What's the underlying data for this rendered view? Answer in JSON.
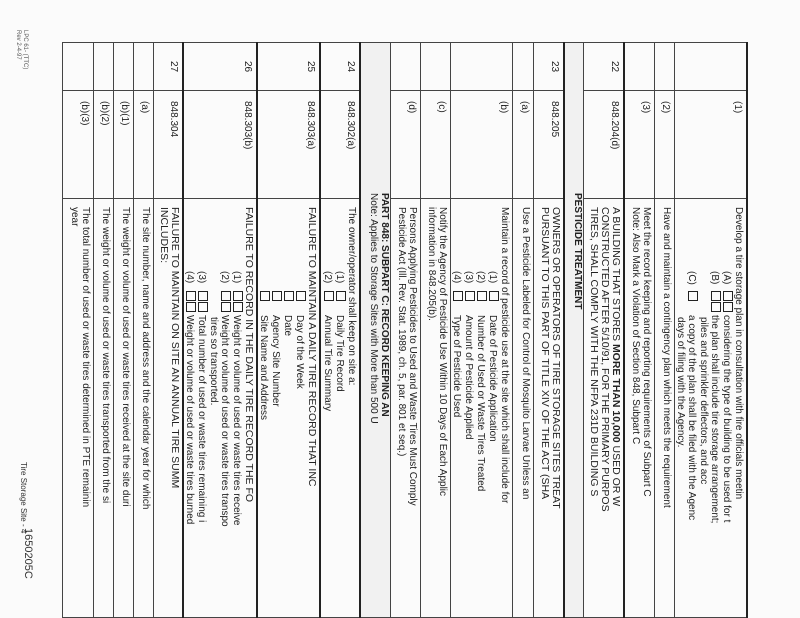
{
  "rows": [
    {
      "type": "main",
      "num": "",
      "sec": "(1)",
      "lines": [
        {
          "k": "caps0",
          "text": "Develop a tire storage plan in consultation with fire officials meetin"
        },
        {
          "k": "item",
          "label": "(A)",
          "boxes": 2,
          "text": "considering the type of building to be used for t"
        },
        {
          "k": "item",
          "label": "(B)",
          "boxes": 2,
          "text": "the plan shall include tire storage arrangement;"
        },
        {
          "k": "cont",
          "text": "piles and sprinkler deflectors, and acc"
        },
        {
          "k": "item",
          "label": "(C)",
          "boxes": 1,
          "text": "a copy of the plan shall be filed with the Agenc"
        },
        {
          "k": "cont",
          "text": "days of filing with the Agency."
        }
      ]
    },
    {
      "type": "sub",
      "num": "",
      "sec": "(2)",
      "lines": [
        {
          "text": "Have and maintain a contingency plan which meets the requirement"
        }
      ]
    },
    {
      "type": "sub",
      "num": "",
      "sec": "(3)",
      "lines": [
        {
          "text": "Meet the record keeping and reporting requirements of Subpart C"
        },
        {
          "text": "Note: Also Mark a Violation of Section 848, Subpart C"
        }
      ]
    },
    {
      "type": "main",
      "num": "22",
      "sec": "848.204(d)",
      "lines": [
        {
          "k": "caps",
          "text": "A BUILDING THAT STORES ",
          "bold": "MORE THAN 10,000",
          "post": " USED OR W"
        },
        {
          "k": "caps",
          "text": "CONSTRUCTED AFTER 5/10/91, FOR THE PRIMARY PURPOS"
        },
        {
          "k": "caps",
          "text": "TIRES, SHALL COMPLY WITH THE NFPA 231D BUILDING S"
        }
      ]
    },
    {
      "type": "hdr",
      "lines": [
        {
          "text": "PESTICIDE TREATMENT"
        }
      ]
    },
    {
      "type": "main",
      "num": "23",
      "sec": "848.205",
      "lines": [
        {
          "k": "caps",
          "text": "OWNERS OR OPERATORS OF TIRE STORAGE SITES TREAT"
        },
        {
          "k": "caps",
          "text": "PURSUANT TO THIS PART OF TITLE XIV OF THE ACT (SHA"
        }
      ]
    },
    {
      "type": "sub",
      "num": "",
      "sec": "(a)",
      "lines": [
        {
          "text": "Use a Pesticide Labeled for Control of Mosquito Larvae Unless an"
        }
      ]
    },
    {
      "type": "sub",
      "num": "",
      "sec": "(b)",
      "lines": [
        {
          "text": "Maintain a record of pesticide use at the site which shall include for"
        },
        {
          "k": "item",
          "label": "(1)",
          "boxes": 1,
          "text": "Date of Pesticide Application"
        },
        {
          "k": "item",
          "label": "(2)",
          "boxes": 1,
          "text": "Number of Used or Waste Tires Treated"
        },
        {
          "k": "item",
          "label": "(3)",
          "boxes": 1,
          "text": "Amount of Pesticide Applied"
        },
        {
          "k": "item",
          "label": "(4)",
          "boxes": 1,
          "text": "Type of Pesticide Used"
        }
      ]
    },
    {
      "type": "sub",
      "num": "",
      "sec": "(c)",
      "lines": [
        {
          "text": "Notify the Agency of Pesticide Use Within 10 Days of Each Applic"
        },
        {
          "text": "information in 848.205(b)."
        }
      ]
    },
    {
      "type": "sub",
      "num": "",
      "sec": "(d)",
      "lines": [
        {
          "text": "Persons Applying Pesticides to Used and Waste Tires Must Comply"
        },
        {
          "text": "Pesticide Act (Ill. Rev. Stat. 1989, ch. 5, par. 801 et seq.)"
        }
      ]
    },
    {
      "type": "hdr",
      "lines": [
        {
          "text": "PART 848: SUBPART C: RECORD KEEPING AN"
        },
        {
          "text": "Note: Applies to Storage Sites with More than 500 U"
        }
      ]
    },
    {
      "type": "main",
      "num": "24",
      "sec": "848.302(a)",
      "lines": [
        {
          "text": "The owner/operator shall keep on site a:"
        },
        {
          "k": "item",
          "label": "(1)",
          "boxes": 1,
          "text": "Daily Tire Record"
        },
        {
          "k": "item",
          "label": "(2)",
          "boxes": 1,
          "text": "Annual Tire Summary"
        }
      ]
    },
    {
      "type": "main",
      "num": "25",
      "sec": "848.303(a)",
      "lines": [
        {
          "k": "caps",
          "text": "FAILURE TO MAINTAIN A DAILY TIRE RECORD THAT INC"
        },
        {
          "k": "item",
          "label": "",
          "boxes": 1,
          "text": "Day of the Week"
        },
        {
          "k": "item",
          "label": "",
          "boxes": 1,
          "text": "Date"
        },
        {
          "k": "item",
          "label": "",
          "boxes": 1,
          "text": "Agency Site Number"
        },
        {
          "k": "item",
          "label": "",
          "boxes": 1,
          "text": "Site Name and Address"
        }
      ]
    },
    {
      "type": "main",
      "num": "26",
      "sec": "848.303(b)",
      "lines": [
        {
          "k": "caps",
          "text": "FAILURE TO RECORD IN THE DAILY TIRE RECORD THE FO"
        },
        {
          "k": "item",
          "label": "(1)",
          "boxes": 2,
          "text": "Weight or volume of used or waste tires receive"
        },
        {
          "k": "item",
          "label": "(2)",
          "boxes": 2,
          "text": "Weight or volume of used or waste tires transpo"
        },
        {
          "k": "cont",
          "text": "tires so transported."
        },
        {
          "k": "item",
          "label": "(3)",
          "boxes": 2,
          "text": "Total number of used or waste tires remaining i"
        },
        {
          "k": "item",
          "label": "(4)",
          "boxes": 2,
          "text": "Weight or volume of used or waste tires burned"
        }
      ]
    },
    {
      "type": "main",
      "num": "27",
      "sec": "848.304",
      "lines": [
        {
          "k": "caps",
          "text": "FAILURE TO MAINTAIN ON SITE AN ANNUAL TIRE SUMM"
        },
        {
          "k": "caps",
          "text": "INCLUDES:"
        }
      ]
    },
    {
      "type": "sub",
      "num": "",
      "sec": "(a)",
      "lines": [
        {
          "text": "The site number, name and address and the calendar year for which"
        }
      ]
    },
    {
      "type": "sub",
      "num": "",
      "sec": "(b)(1)",
      "lines": [
        {
          "text": "The weight or volume of used or waste tires received at the site duri"
        }
      ]
    },
    {
      "type": "sub",
      "num": "",
      "sec": "(b)(2)",
      "lines": [
        {
          "text": "The weight or volume of used or waste tires transported from the si"
        }
      ]
    },
    {
      "type": "sub",
      "num": "",
      "sec": "(b)(3)",
      "lines": [
        {
          "text": "The total number of used or waste tires determined in PTE remainin"
        },
        {
          "text": "year"
        }
      ]
    }
  ],
  "footer": {
    "form_id": "LPC 61- (TTC)",
    "revision": "Rev 2-4-97",
    "page_label": "Tire Storage Site - 4",
    "doc_number": "1650205C"
  }
}
